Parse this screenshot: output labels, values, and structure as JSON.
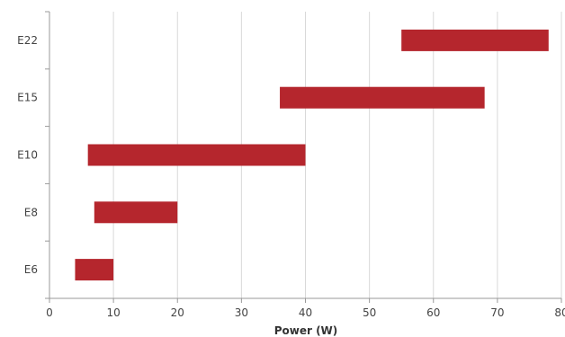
{
  "chart_data": {
    "type": "bar",
    "orientation": "horizontal",
    "style": "floating-range",
    "title": "",
    "xlabel": "Power (W)",
    "ylabel": "",
    "xlim": [
      0,
      80
    ],
    "xticks": [
      0,
      10,
      20,
      30,
      40,
      50,
      60,
      70,
      80
    ],
    "xtick_labels": [
      "0",
      "10",
      "20",
      "30",
      "40",
      "50",
      "60",
      "70",
      "80"
    ],
    "grid": "vertical",
    "legend": "none",
    "bar_color": "#b5262d",
    "categories": [
      "E6",
      "E8",
      "E10",
      "E15",
      "E22"
    ],
    "ranges": [
      {
        "category": "E6",
        "start": 4,
        "end": 10
      },
      {
        "category": "E8",
        "start": 7,
        "end": 20
      },
      {
        "category": "E10",
        "start": 6,
        "end": 40
      },
      {
        "category": "E15",
        "start": 36,
        "end": 68
      },
      {
        "category": "E22",
        "start": 55,
        "end": 78
      }
    ]
  }
}
